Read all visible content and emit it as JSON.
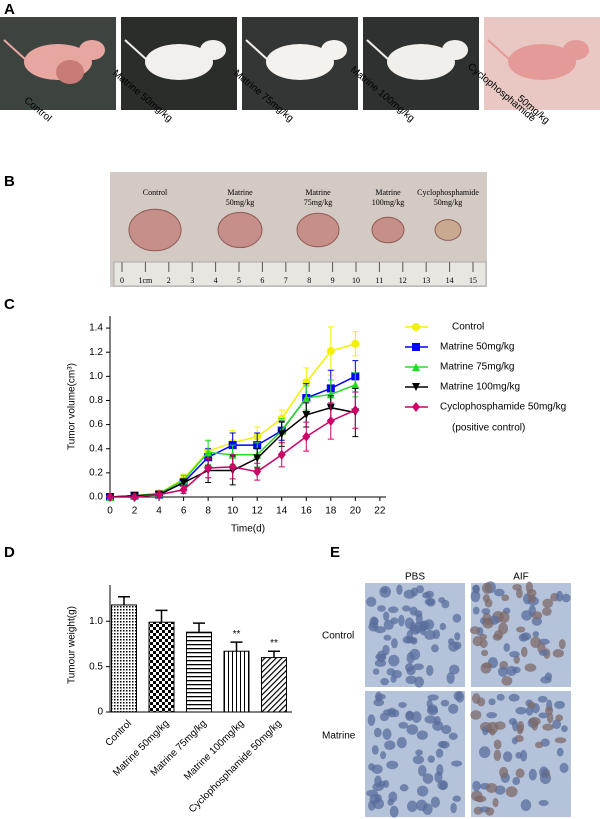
{
  "panels": {
    "a": {
      "label": "A",
      "photos": [
        [
          "Control"
        ],
        [
          "Matrine 50mg/kg"
        ],
        [
          "Matrine 75mg/kg"
        ],
        [
          "Matrine 100mg/kg"
        ],
        [
          "Cyclophosphamide",
          "50mg/kg"
        ]
      ]
    },
    "b": {
      "label": "B",
      "tumors": [
        [
          "Control"
        ],
        [
          "Matrine",
          "50mg/kg"
        ],
        [
          "Matrine",
          "75mg/kg"
        ],
        [
          "Matrine",
          "100mg/kg"
        ],
        [
          "Cyclophosphamide",
          "50mg/kg"
        ]
      ],
      "ruler": [
        "0",
        "1cm",
        "2",
        "3",
        "4",
        "5",
        "6",
        "7",
        "8",
        "9",
        "10",
        "11",
        "12",
        "13",
        "14",
        "15"
      ]
    },
    "c": {
      "label": "C"
    },
    "d": {
      "label": "D"
    },
    "e": {
      "label": "E",
      "columns": [
        "PBS",
        "AIF"
      ],
      "rows": [
        "Control",
        "Matrine"
      ]
    }
  },
  "chart_data": [
    {
      "type": "line",
      "xlabel": "Time(d)",
      "ylabel": "Tumor volume(cm³)",
      "x": [
        0,
        2,
        4,
        6,
        8,
        10,
        12,
        14,
        16,
        18,
        20
      ],
      "xlim": [
        0,
        22.5
      ],
      "xticks": [
        0,
        2,
        4,
        6,
        8,
        10,
        12,
        14,
        16,
        18,
        20,
        22
      ],
      "ylim": [
        0,
        1.5
      ],
      "yticks": [
        {
          "value": 0,
          "label": "0.0"
        },
        0.2,
        0.4,
        0.6,
        0.8,
        {
          "value": 1,
          "label": "1.0"
        },
        1.2,
        1.4
      ],
      "legend": "right",
      "legend_note": "(positive control)",
      "series": [
        {
          "name": "Control",
          "color": "#f2f200",
          "marker": "circle",
          "values": [
            0,
            0.01,
            0.03,
            0.15,
            0.38,
            0.45,
            0.5,
            0.65,
            0.95,
            1.21,
            1.27
          ],
          "errors": [
            0.01,
            0.01,
            0.01,
            0.04,
            0.08,
            0.1,
            0.08,
            0.07,
            0.12,
            0.2,
            0.1
          ]
        },
        {
          "name": "Matrine 50mg/kg",
          "color": "#0000ff",
          "marker": "square",
          "values": [
            0,
            0.01,
            0.02,
            0.12,
            0.33,
            0.43,
            0.43,
            0.55,
            0.82,
            0.9,
            1.0
          ],
          "errors": [
            0.01,
            0.01,
            0.01,
            0.03,
            0.07,
            0.1,
            0.1,
            0.08,
            0.12,
            0.15,
            0.13
          ]
        },
        {
          "name": "Matrine 75mg/kg",
          "color": "#22dd22",
          "marker": "triangle",
          "values": [
            0,
            0.01,
            0.03,
            0.14,
            0.37,
            0.35,
            0.35,
            0.55,
            0.82,
            0.85,
            0.93
          ],
          "errors": [
            0.01,
            0.01,
            0.01,
            0.04,
            0.1,
            0.08,
            0.1,
            0.1,
            0.1,
            0.12,
            0.1
          ]
        },
        {
          "name": "Matrine 100mg/kg",
          "color": "#000000",
          "marker": "triangle-down",
          "values": [
            0,
            0.01,
            0.02,
            0.12,
            0.22,
            0.22,
            0.32,
            0.52,
            0.68,
            0.74,
            0.7
          ],
          "errors": [
            0.01,
            0.01,
            0.01,
            0.03,
            0.1,
            0.12,
            0.08,
            0.1,
            0.1,
            0.1,
            0.2
          ]
        },
        {
          "name": "Cyclophosphamide 50mg/kg",
          "color": "#cc0066",
          "marker": "diamond",
          "values": [
            0,
            0,
            0.02,
            0.06,
            0.24,
            0.25,
            0.21,
            0.35,
            0.5,
            0.63,
            0.72
          ],
          "errors": [
            0.01,
            0.01,
            0.01,
            0.03,
            0.08,
            0.1,
            0.07,
            0.1,
            0.12,
            0.15,
            0.15
          ]
        }
      ]
    },
    {
      "type": "bar",
      "ylabel": "Tumour weight(g)",
      "categories": [
        "Control",
        "Matrine 50mg/kg",
        "Matrine 75mg/kg",
        "Matrine 100mg/kg",
        "Cyclophosphamide 50mg/kg"
      ],
      "values": [
        1.18,
        0.99,
        0.88,
        0.67,
        0.6
      ],
      "errors": [
        0.09,
        0.13,
        0.1,
        0.1,
        0.07
      ],
      "significance": [
        null,
        null,
        null,
        "**",
        "**"
      ],
      "patterns": [
        "crosshatch",
        "checker",
        "horizontal",
        "vertical",
        "diagonal"
      ],
      "ylim": [
        0,
        1.4
      ],
      "yticks": [
        0,
        0.5,
        {
          "value": 1,
          "label": "1.0"
        }
      ]
    }
  ]
}
